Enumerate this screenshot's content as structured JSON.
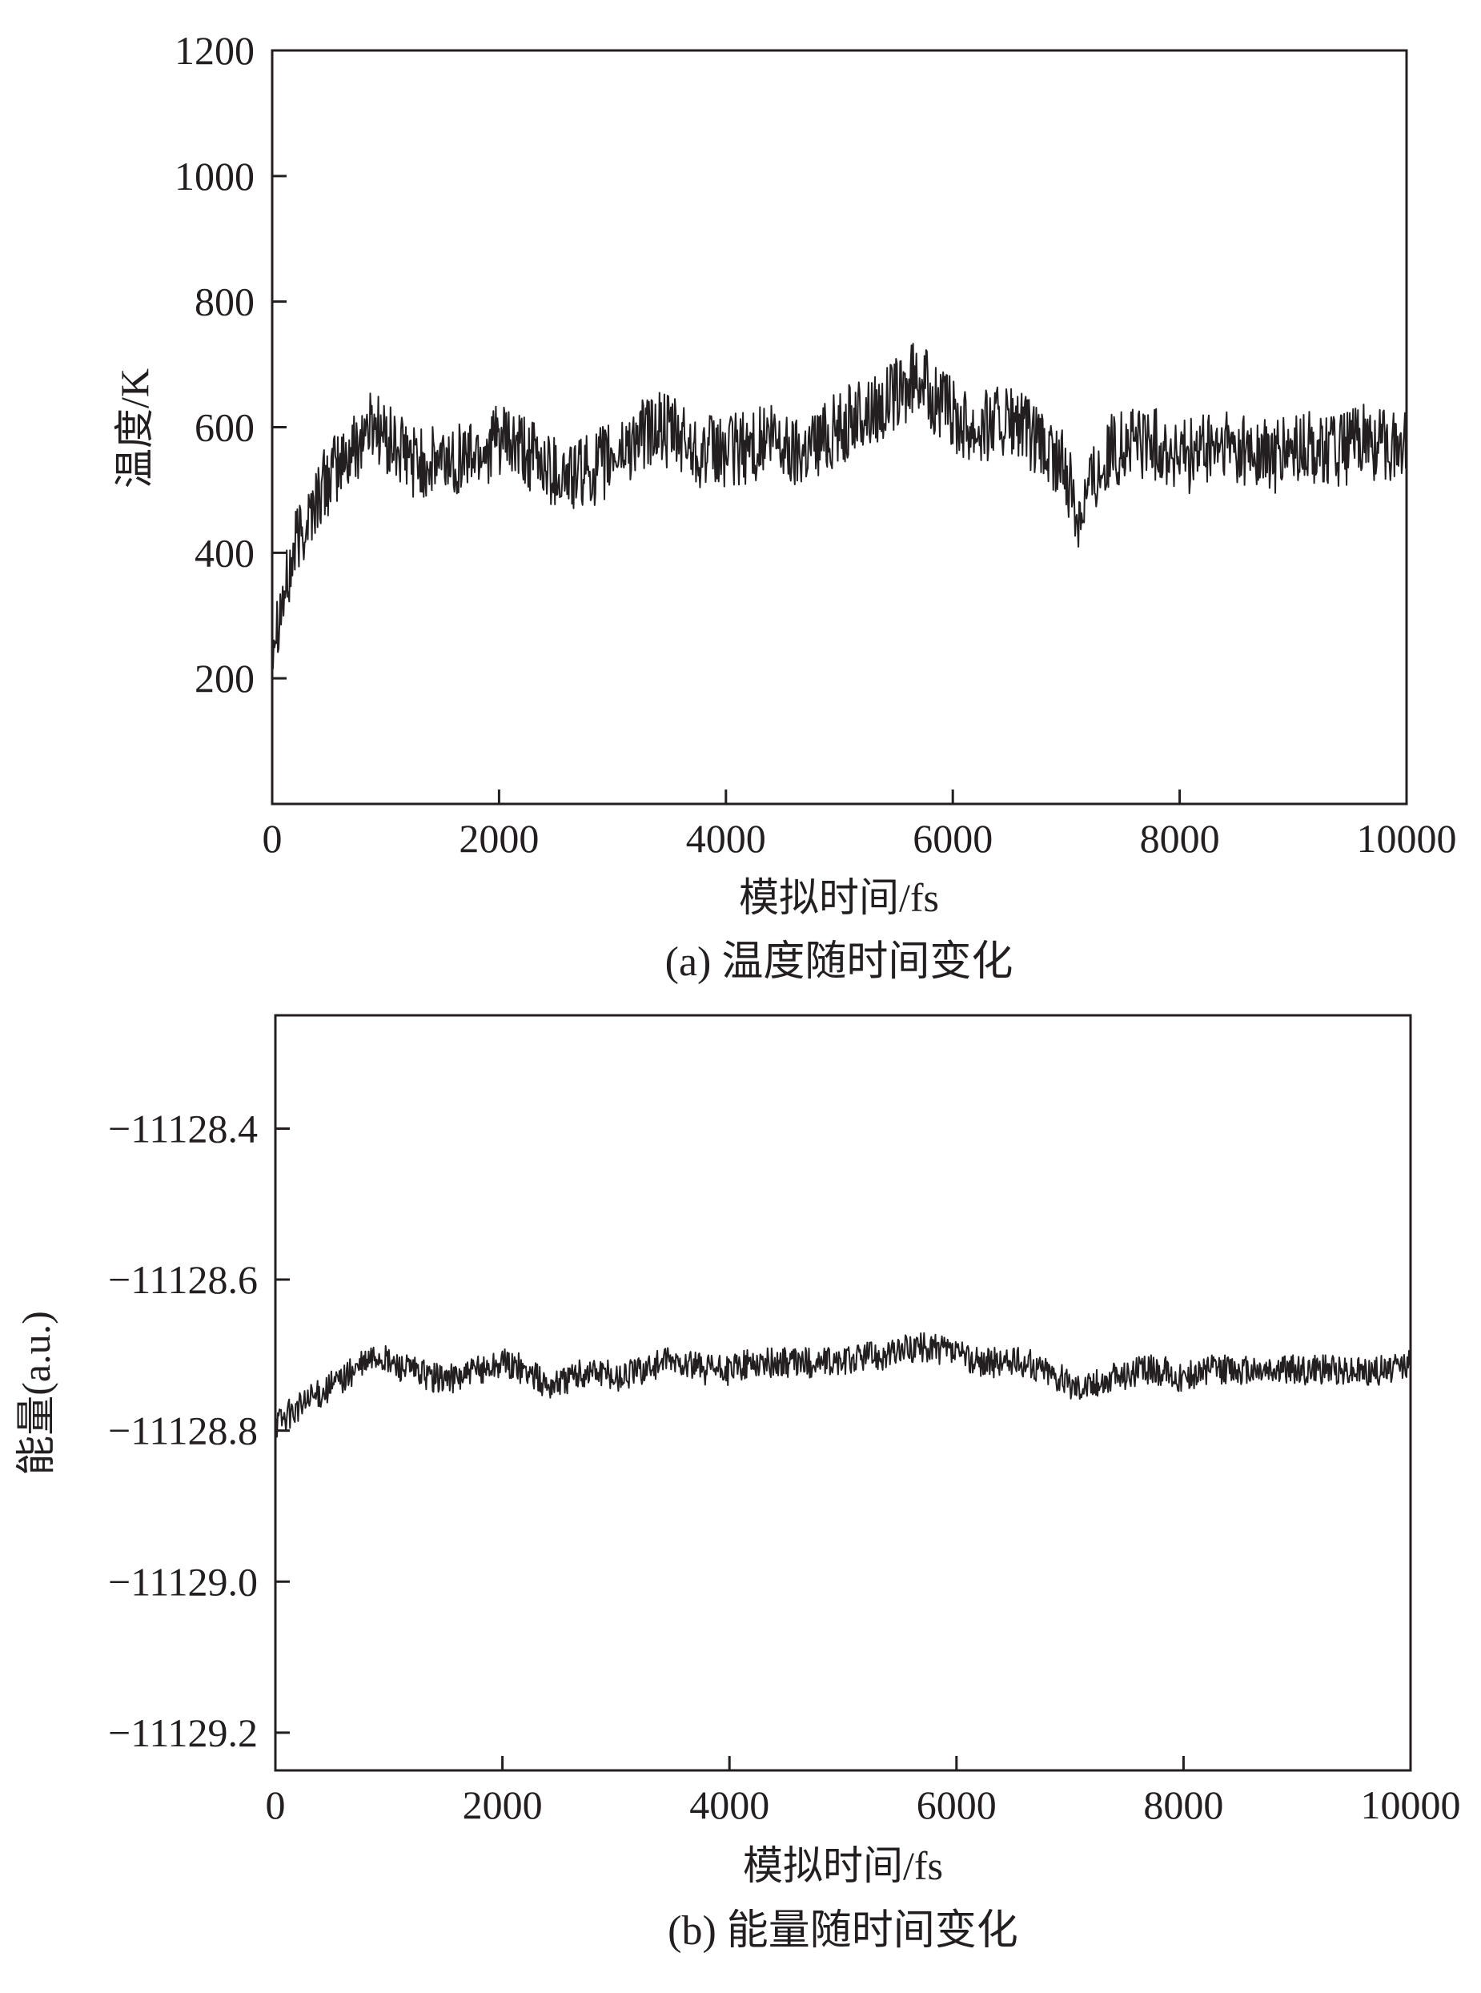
{
  "chart_data": [
    {
      "type": "line",
      "caption": "(a) 温度随时间变化",
      "xlabel": "模拟时间/fs",
      "ylabel": "温度/K",
      "xlim": [
        0,
        10000
      ],
      "ylim": [
        0,
        1200
      ],
      "xticks": [
        0,
        2000,
        4000,
        6000,
        8000,
        10000
      ],
      "xtick_labels": [
        "0",
        "2000",
        "4000",
        "6000",
        "8000",
        "10000"
      ],
      "yticks": [
        200,
        400,
        600,
        800,
        1000,
        1200
      ],
      "ytick_labels": [
        "200",
        "400",
        "600",
        "800",
        "1000",
        "1200"
      ],
      "grid": false,
      "series": [
        {
          "color": "#231f20",
          "x": [
            0,
            50,
            100,
            150,
            200,
            300,
            400,
            500,
            600,
            700,
            800,
            900,
            1000,
            1200,
            1400,
            1600,
            1800,
            2000,
            2200,
            2400,
            2600,
            2800,
            3000,
            3200,
            3400,
            3600,
            3800,
            4000,
            4200,
            4400,
            4600,
            4800,
            5000,
            5200,
            5400,
            5600,
            5700,
            5800,
            6000,
            6200,
            6400,
            6600,
            6800,
            7000,
            7100,
            7200,
            7400,
            7600,
            7800,
            8000,
            8200,
            8400,
            8600,
            8800,
            9000,
            9200,
            9400,
            9600,
            9800,
            10000
          ],
          "y": [
            270,
            300,
            330,
            360,
            410,
            450,
            490,
            520,
            540,
            560,
            590,
            610,
            580,
            550,
            540,
            550,
            560,
            580,
            560,
            540,
            520,
            530,
            550,
            580,
            600,
            580,
            560,
            560,
            570,
            580,
            560,
            580,
            600,
            620,
            640,
            660,
            690,
            650,
            620,
            600,
            610,
            600,
            560,
            530,
            460,
            510,
            560,
            580,
            570,
            550,
            560,
            570,
            560,
            550,
            560,
            570,
            560,
            580,
            570,
            580
          ],
          "noise_amplitude": 60
        }
      ]
    },
    {
      "type": "line",
      "caption": "(b) 能量随时间变化",
      "xlabel": "模拟时间/fs",
      "ylabel": "能量(a.u.)",
      "xlim": [
        0,
        10000
      ],
      "ylim": [
        -11129.25,
        -11128.25
      ],
      "xticks": [
        0,
        2000,
        4000,
        6000,
        8000,
        10000
      ],
      "xtick_labels": [
        "0",
        "2000",
        "4000",
        "6000",
        "8000",
        "10000"
      ],
      "yticks": [
        -11129.2,
        -11129.0,
        -11128.8,
        -11128.6,
        -11128.4
      ],
      "ytick_labels": [
        "−11129.2",
        "−11129.0",
        "−11128.8",
        "−11128.6",
        "−11128.4"
      ],
      "grid": false,
      "series": [
        {
          "color": "#231f20",
          "x": [
            0,
            100,
            200,
            300,
            400,
            500,
            600,
            700,
            800,
            900,
            1000,
            1200,
            1400,
            1600,
            1800,
            2000,
            2200,
            2400,
            2600,
            2800,
            3000,
            3200,
            3400,
            3600,
            3800,
            4000,
            4200,
            4400,
            4600,
            4800,
            5000,
            5200,
            5400,
            5600,
            5700,
            5800,
            6000,
            6200,
            6400,
            6600,
            6800,
            7000,
            7200,
            7400,
            7600,
            7800,
            8000,
            8200,
            8400,
            8600,
            8800,
            9000,
            9200,
            9400,
            9600,
            9800,
            10000
          ],
          "y": [
            -11128.79,
            -11128.78,
            -11128.77,
            -11128.76,
            -11128.75,
            -11128.74,
            -11128.73,
            -11128.72,
            -11128.71,
            -11128.7,
            -11128.71,
            -11128.72,
            -11128.73,
            -11128.73,
            -11128.72,
            -11128.71,
            -11128.72,
            -11128.74,
            -11128.73,
            -11128.72,
            -11128.73,
            -11128.72,
            -11128.71,
            -11128.71,
            -11128.72,
            -11128.72,
            -11128.71,
            -11128.71,
            -11128.71,
            -11128.71,
            -11128.71,
            -11128.7,
            -11128.7,
            -11128.69,
            -11128.69,
            -11128.69,
            -11128.7,
            -11128.71,
            -11128.71,
            -11128.71,
            -11128.72,
            -11128.74,
            -11128.74,
            -11128.73,
            -11128.72,
            -11128.72,
            -11128.73,
            -11128.72,
            -11128.72,
            -11128.72,
            -11128.72,
            -11128.72,
            -11128.72,
            -11128.72,
            -11128.72,
            -11128.72,
            -11128.71
          ],
          "noise_amplitude": 0.02
        }
      ]
    }
  ]
}
